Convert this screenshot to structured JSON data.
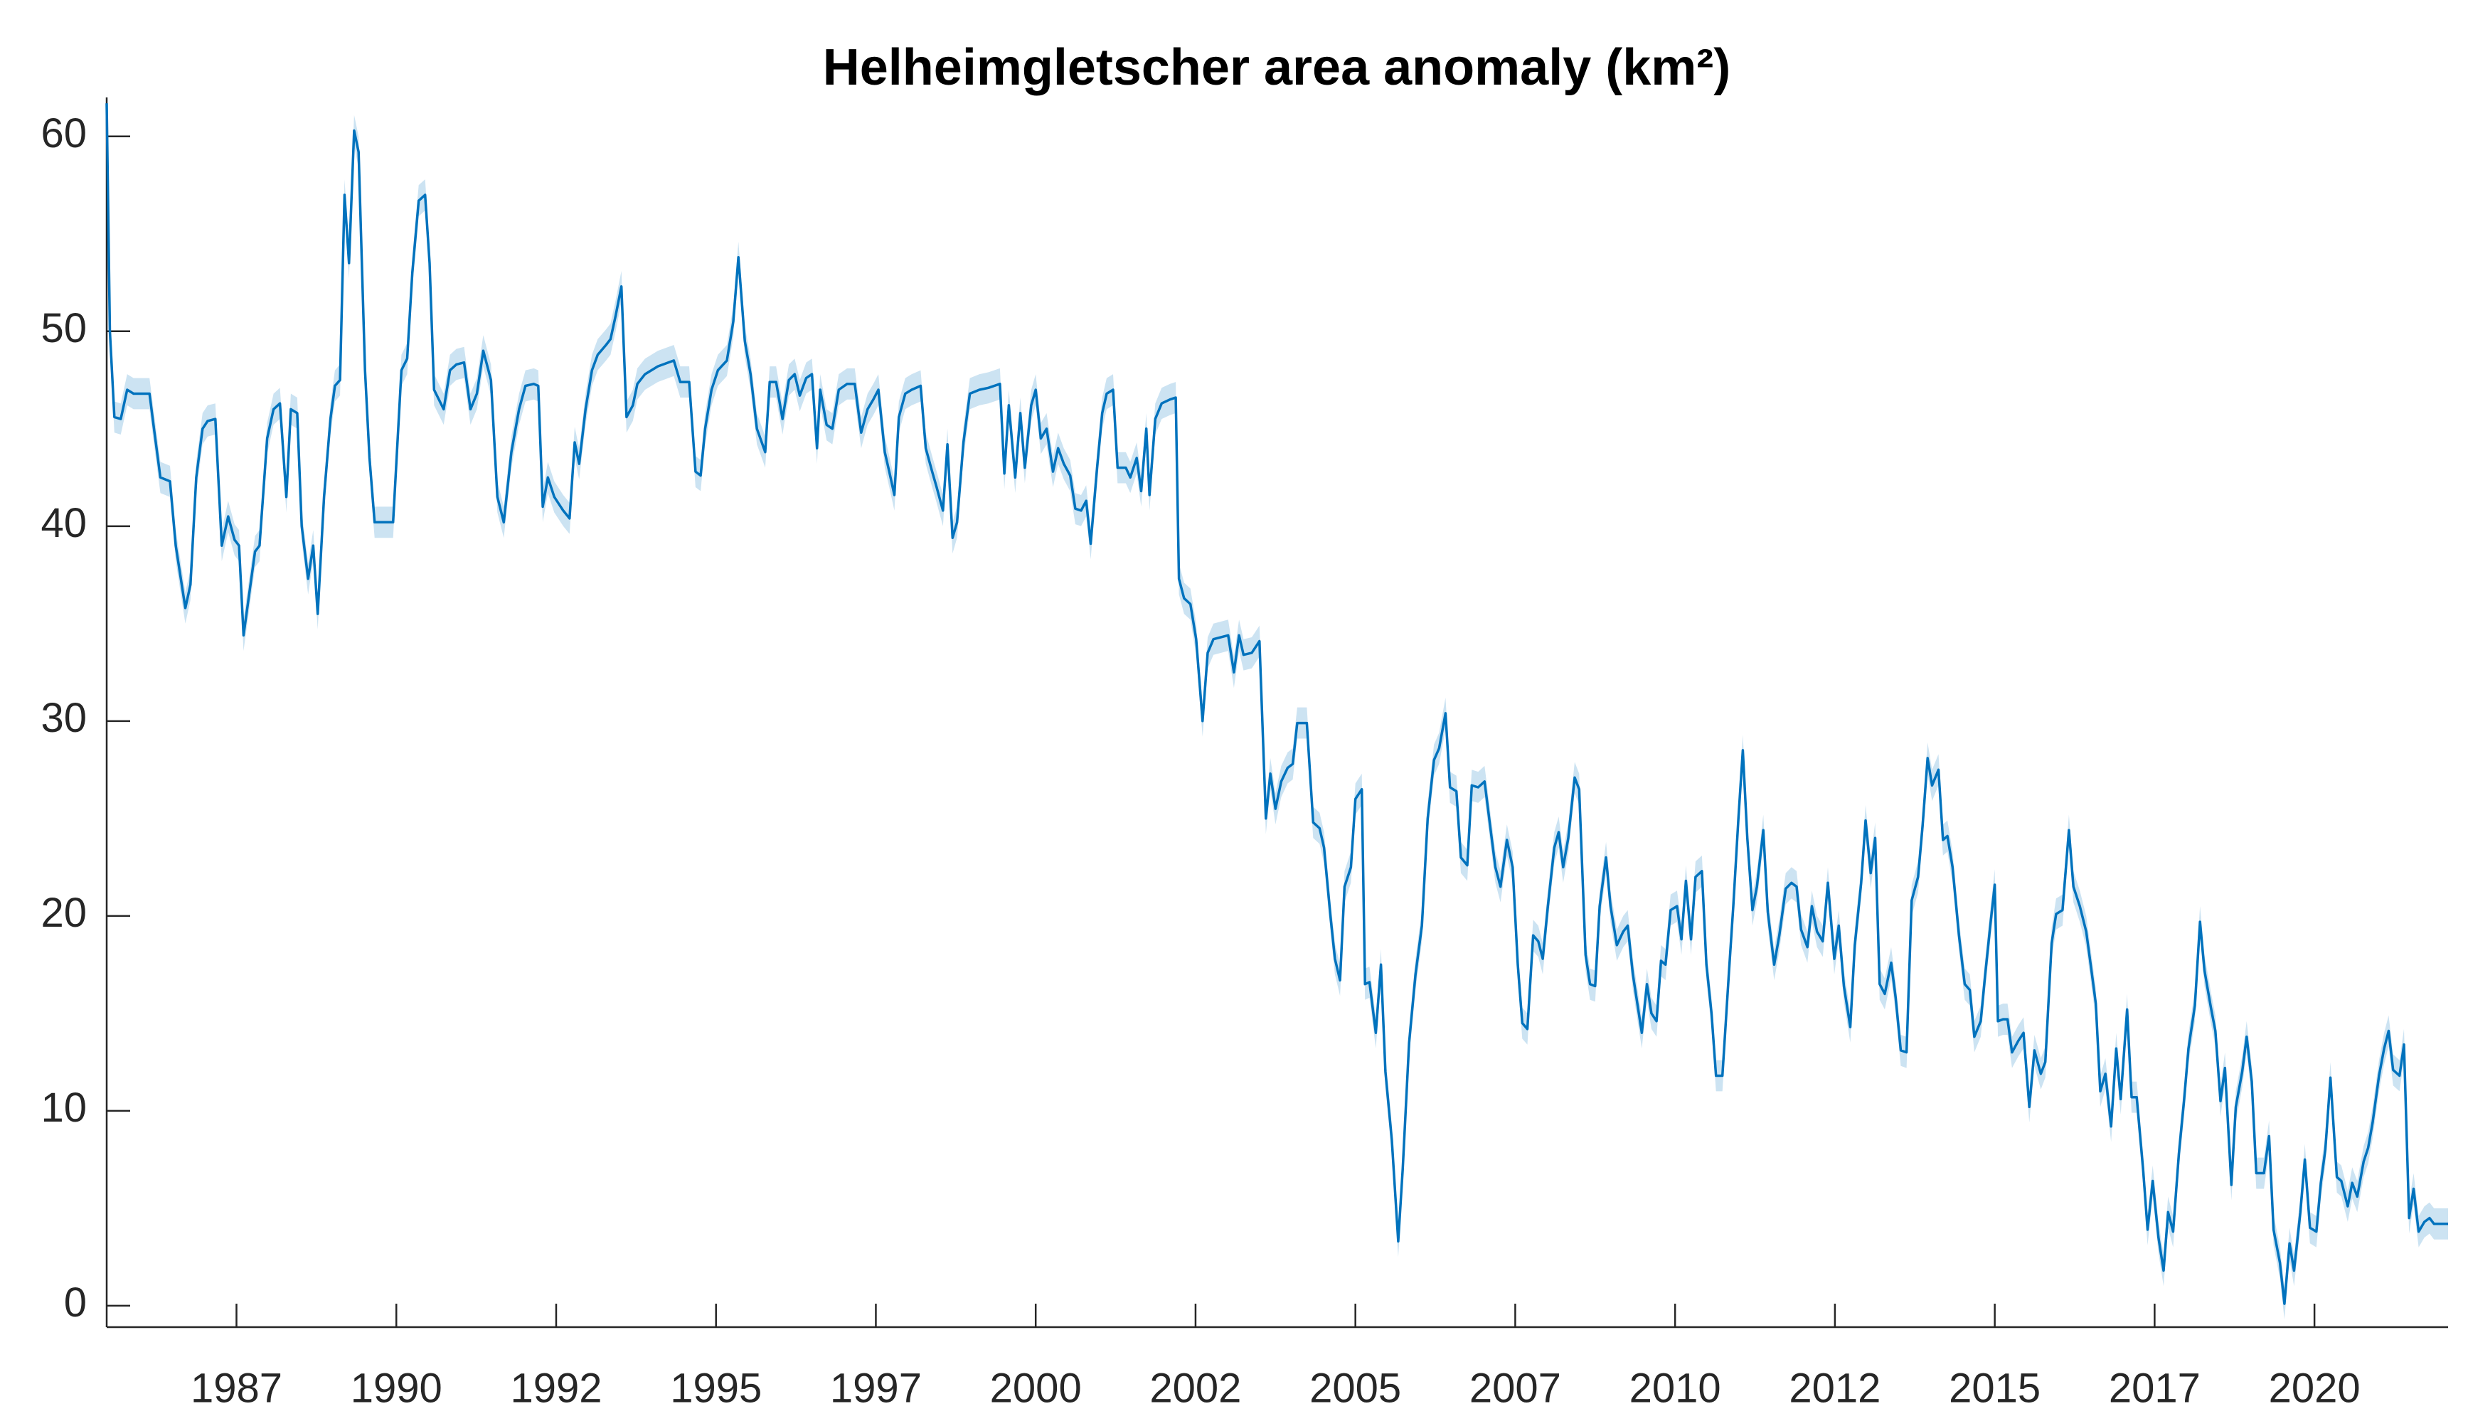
{
  "chart_data": {
    "type": "line",
    "title": "Helheimgletscher area anomaly (km²)",
    "x": [
      1985.47,
      1985.52,
      1985.59,
      1985.69,
      1985.79,
      1985.89,
      1986.14,
      1986.21,
      1986.31,
      1986.46,
      1986.55,
      1986.7,
      1986.78,
      1986.87,
      1986.97,
      1987.05,
      1987.17,
      1987.27,
      1987.37,
      1987.47,
      1987.54,
      1987.61,
      1987.79,
      1987.86,
      1987.98,
      1988.08,
      1988.18,
      1988.28,
      1988.35,
      1988.45,
      1988.52,
      1988.62,
      1988.7,
      1988.77,
      1988.87,
      1988.97,
      1989.04,
      1989.12,
      1989.19,
      1989.26,
      1989.34,
      1989.41,
      1989.51,
      1989.58,
      1989.66,
      1989.95,
      1990.08,
      1990.17,
      1990.25,
      1990.35,
      1990.45,
      1990.52,
      1990.59,
      1990.74,
      1990.84,
      1990.94,
      1991.06,
      1991.16,
      1991.26,
      1991.36,
      1991.48,
      1991.58,
      1991.68,
      1991.8,
      1991.92,
      1992.02,
      1992.15,
      1992.22,
      1992.29,
      1992.37,
      1992.47,
      1992.61,
      1992.71,
      1992.79,
      1992.86,
      1992.96,
      1993.06,
      1993.15,
      1993.28,
      1993.35,
      1993.43,
      1993.52,
      1993.6,
      1993.7,
      1993.77,
      1993.89,
      1994.09,
      1994.34,
      1994.44,
      1994.58,
      1994.68,
      1994.76,
      1994.83,
      1994.93,
      1995.03,
      1995.17,
      1995.27,
      1995.35,
      1995.45,
      1995.54,
      1995.64,
      1995.77,
      1995.84,
      1995.94,
      1996.04,
      1996.14,
      1996.23,
      1996.31,
      1996.41,
      1996.5,
      1996.58,
      1996.63,
      1996.73,
      1996.82,
      1996.92,
      1997.05,
      1997.17,
      1997.27,
      1997.37,
      1997.46,
      1997.54,
      1997.64,
      1997.71,
      1997.79,
      1997.86,
      1997.96,
      1998.06,
      1998.2,
      1998.28,
      1998.38,
      1998.45,
      1998.55,
      1998.62,
      1998.7,
      1998.77,
      1998.87,
      1998.97,
      1999.12,
      1999.26,
      1999.44,
      1999.51,
      1999.58,
      1999.68,
      1999.76,
      1999.83,
      1999.93,
      2000.0,
      2000.08,
      2000.17,
      2000.27,
      2000.35,
      2000.44,
      2000.54,
      2000.62,
      2000.71,
      2000.79,
      2000.86,
      2000.96,
      2001.04,
      2001.11,
      2001.21,
      2001.28,
      2001.41,
      2001.48,
      2001.58,
      2001.65,
      2001.73,
      2001.78,
      2001.87,
      2001.97,
      2002.1,
      2002.19,
      2002.24,
      2002.32,
      2002.42,
      2002.51,
      2002.61,
      2002.69,
      2002.78,
      2003.01,
      2003.1,
      2003.18,
      2003.25,
      2003.38,
      2003.5,
      2003.6,
      2003.67,
      2003.75,
      2003.84,
      2003.94,
      2004.02,
      2004.09,
      2004.24,
      2004.34,
      2004.44,
      2004.51,
      2004.61,
      2004.68,
      2004.76,
      2004.83,
      2004.93,
      2005.0,
      2005.1,
      2005.15,
      2005.22,
      2005.32,
      2005.4,
      2005.47,
      2005.57,
      2005.67,
      2005.74,
      2005.84,
      2005.94,
      2006.04,
      2006.13,
      2006.23,
      2006.31,
      2006.41,
      2006.48,
      2006.58,
      2006.65,
      2006.75,
      2006.82,
      2006.92,
      2007.02,
      2007.1,
      2007.19,
      2007.27,
      2007.37,
      2007.46,
      2007.54,
      2007.61,
      2007.69,
      2007.78,
      2007.86,
      2007.93,
      2008.01,
      2008.11,
      2008.18,
      2008.25,
      2008.33,
      2008.43,
      2008.5,
      2008.6,
      2008.67,
      2008.75,
      2008.82,
      2008.92,
      2008.99,
      2009.09,
      2009.19,
      2009.26,
      2009.34,
      2009.41,
      2009.48,
      2009.56,
      2009.63,
      2009.71,
      2009.78,
      2009.85,
      2009.93,
      2010.03,
      2010.1,
      2010.17,
      2010.25,
      2010.32,
      2010.42,
      2010.49,
      2010.57,
      2010.64,
      2010.74,
      2010.84,
      2010.91,
      2010.99,
      2011.06,
      2011.13,
      2011.21,
      2011.28,
      2011.38,
      2011.45,
      2011.55,
      2011.63,
      2011.73,
      2011.82,
      2011.9,
      2011.97,
      2012.07,
      2012.14,
      2012.22,
      2012.31,
      2012.39,
      2012.49,
      2012.56,
      2012.64,
      2012.74,
      2012.81,
      2012.91,
      2012.98,
      2013.06,
      2013.13,
      2013.2,
      2013.28,
      2013.38,
      2013.45,
      2013.53,
      2013.62,
      2013.7,
      2013.8,
      2013.87,
      2013.95,
      2014.02,
      2014.12,
      2014.19,
      2014.26,
      2014.34,
      2014.44,
      2014.53,
      2014.61,
      2014.68,
      2014.78,
      2014.85,
      2014.93,
      2015.0,
      2015.05,
      2015.13,
      2015.2,
      2015.27,
      2015.37,
      2015.45,
      2015.54,
      2015.62,
      2015.72,
      2015.79,
      2015.89,
      2015.96,
      2016.06,
      2016.16,
      2016.23,
      2016.33,
      2016.43,
      2016.5,
      2016.58,
      2016.65,
      2016.73,
      2016.82,
      2016.9,
      2016.97,
      2017.07,
      2017.14,
      2017.22,
      2017.32,
      2017.39,
      2017.47,
      2017.56,
      2017.64,
      2017.71,
      2017.79,
      2017.88,
      2017.96,
      2018.03,
      2018.13,
      2018.21,
      2018.28,
      2018.38,
      2018.45,
      2018.53,
      2018.6,
      2018.7,
      2018.77,
      2018.87,
      2018.94,
      2019.02,
      2019.09,
      2019.21,
      2019.29,
      2019.36,
      2019.46,
      2019.53,
      2019.61,
      2019.68,
      2019.78,
      2019.85,
      2019.93,
      2020.03,
      2020.1,
      2020.17,
      2020.25,
      2020.35,
      2020.42,
      2020.52,
      2020.59,
      2020.67,
      2020.77,
      2020.84,
      2020.91,
      2021.01,
      2021.09,
      2021.16,
      2021.23,
      2021.33,
      2021.4,
      2021.48,
      2021.55,
      2021.63,
      2021.72,
      2021.8,
      2021.87,
      2022.09
    ],
    "series": [
      {
        "color": "#0072bd",
        "uncertainty": 0.8,
        "values": [
          61.7,
          50,
          45.6,
          45.5,
          47,
          46.8,
          46.8,
          45,
          42.5,
          42.3,
          39,
          35.8,
          37,
          42.5,
          45,
          45.4,
          45.5,
          39,
          40.5,
          39.3,
          39,
          34.4,
          38.7,
          39,
          44.5,
          46,
          46.3,
          41.5,
          46,
          45.8,
          40,
          37.3,
          39,
          35.5,
          41.5,
          45.5,
          47.2,
          47.5,
          57,
          53.5,
          60.3,
          59.2,
          48,
          43.5,
          40.2,
          40.2,
          48,
          48.6,
          53,
          56.7,
          57,
          53.5,
          47,
          46,
          48,
          48.3,
          48.4,
          46,
          46.8,
          49,
          47.5,
          41.5,
          40.2,
          43.8,
          46,
          47.2,
          47.3,
          47.2,
          41,
          42.5,
          41.5,
          40.8,
          40.4,
          44.3,
          43.2,
          46,
          48,
          48.8,
          49.3,
          49.6,
          50.8,
          52.3,
          45.6,
          46.2,
          47.3,
          47.8,
          48.2,
          48.5,
          47.4,
          47.4,
          42.8,
          42.6,
          45,
          47,
          48,
          48.5,
          50.5,
          53.8,
          49.5,
          47.8,
          45,
          43.8,
          47.4,
          47.4,
          45.5,
          47.5,
          47.8,
          46.7,
          47.6,
          47.8,
          44,
          47,
          45.2,
          45,
          47,
          47.3,
          47.3,
          44.8,
          46,
          46.5,
          47,
          43.8,
          42.8,
          41.6,
          45.6,
          46.8,
          47,
          47.2,
          44,
          42.8,
          42,
          40.8,
          44.2,
          39.4,
          40.2,
          44.3,
          46.8,
          47,
          47.1,
          47.3,
          42.7,
          46.2,
          42.5,
          45.8,
          43,
          46.2,
          47,
          44.5,
          45,
          42.8,
          44,
          43.2,
          42.6,
          40.9,
          40.8,
          41.3,
          39.1,
          43,
          45.8,
          46.8,
          47,
          43,
          43,
          42.5,
          43.5,
          41.8,
          45,
          41.6,
          45.5,
          46.3,
          46.5,
          46.6,
          37.3,
          36.3,
          36,
          34.2,
          30,
          33.5,
          34.2,
          34.4,
          32.5,
          34.4,
          33.4,
          33.5,
          34.1,
          25,
          27.3,
          25.5,
          26.9,
          27.6,
          27.8,
          29.9,
          29.9,
          24.8,
          24.5,
          23.5,
          20,
          17.8,
          16.7,
          21.5,
          22.5,
          26,
          26.5,
          16.5,
          16.6,
          14,
          17.5,
          12,
          8.5,
          3.3,
          7,
          13.5,
          17,
          19.5,
          25,
          28,
          28.6,
          30.4,
          26.6,
          26.4,
          23,
          22.6,
          26.7,
          26.6,
          26.9,
          24.8,
          22.5,
          21.5,
          23.9,
          22.5,
          17.5,
          14.5,
          14.2,
          19,
          18.7,
          17.8,
          20.5,
          23.5,
          24.3,
          22.5,
          24,
          27.1,
          26.5,
          18,
          16.5,
          16.4,
          20.5,
          23,
          20.5,
          18.5,
          19.2,
          19.5,
          17,
          15.5,
          14,
          16.5,
          15,
          14.6,
          17.7,
          17.5,
          20.3,
          20.5,
          18.8,
          21.8,
          18.8,
          22,
          22.3,
          17.5,
          15,
          11.8,
          11.8,
          17,
          20.5,
          25,
          28.5,
          24,
          20.3,
          21.5,
          24.4,
          20.2,
          17.5,
          19,
          21.4,
          21.7,
          21.5,
          19.3,
          18.4,
          20.5,
          19.2,
          18.7,
          21.7,
          17.8,
          19.5,
          16.4,
          14.3,
          18.5,
          21.7,
          24.9,
          22.2,
          24,
          16.5,
          16,
          17.6,
          15.8,
          13.1,
          13,
          20.8,
          22,
          24.6,
          28.1,
          26.7,
          27.5,
          23.9,
          24.1,
          22.5,
          19,
          16.5,
          16.2,
          13.8,
          14.6,
          17,
          19.5,
          21.6,
          14.6,
          14.7,
          14.7,
          13,
          13.6,
          14,
          10.2,
          13.1,
          11.9,
          12.5,
          18.6,
          20.1,
          20.3,
          24.4,
          21.5,
          20.5,
          19.2,
          17.5,
          15.5,
          11,
          11.9,
          9.2,
          13.2,
          10.6,
          15.2,
          10.7,
          10.7,
          7,
          3.9,
          6.4,
          3.5,
          1.8,
          4.8,
          3.8,
          7.8,
          10.5,
          13.2,
          15.4,
          19.7,
          17.2,
          15.3,
          14.1,
          10.5,
          12.2,
          6.2,
          10.2,
          12,
          13.8,
          11.5,
          6.8,
          6.8,
          8.7,
          3.9,
          2.2,
          0.1,
          3.2,
          1.8,
          4.8,
          7.5,
          4,
          3.8,
          6.3,
          8,
          11.7,
          6.6,
          6.4,
          5.1,
          6.3,
          5.6,
          7.4,
          8.1,
          9.4,
          11.8,
          13.2,
          14.1,
          12.1,
          11.8,
          13.4,
          4.5,
          6,
          3.8,
          4.3,
          4.5,
          4.2,
          4.2
        ]
      }
    ],
    "xlim": [
      1985.47,
      2022.09
    ],
    "xticks": [
      {
        "value": 1987.5,
        "label": "1987"
      },
      1990,
      {
        "value": 1992.5,
        "label": "1992"
      },
      1995,
      {
        "value": 1997.5,
        "label": "1997"
      },
      2000,
      {
        "value": 2002.5,
        "label": "2002"
      },
      2005,
      {
        "value": 2007.5,
        "label": "2007"
      },
      2010,
      {
        "value": 2012.5,
        "label": "2012"
      },
      2015,
      {
        "value": 2017.5,
        "label": "2017"
      },
      2020
    ],
    "ylim": [
      -1.1,
      62
    ],
    "yticks": [
      0,
      10,
      20,
      30,
      40,
      50,
      60
    ],
    "grid": false
  }
}
